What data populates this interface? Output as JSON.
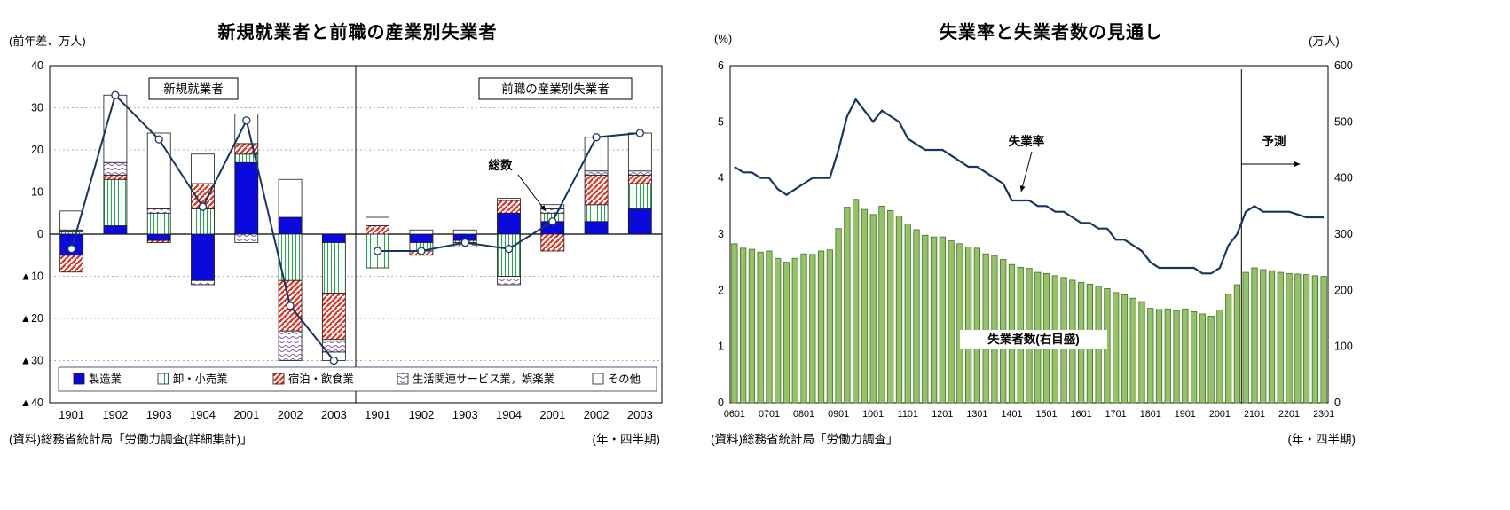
{
  "colors": {
    "navy_line": "#17375E",
    "manufacturing_blue": "#0A0ADC",
    "retail_green": "#2FA05A",
    "hotel_red": "#E0301E",
    "service_purple": "#7B5EA7",
    "other_white": "#FFFFFF",
    "green_bar_fill": "#94C266",
    "green_bar_stroke": "#46702A",
    "segment_outline": "#1A1A1A"
  },
  "chart_data": [
    {
      "type": "bar",
      "subtype": "stacked-bars-with-total-line-two-panels",
      "title": "新規就業者と前職の産業別失業者",
      "y_axis_unit": "(前年差、万人)",
      "x_axis_unit": "(年・四半期)",
      "source": "(資料)総務省統計局「労働力調査(詳細集計)」",
      "ylim": [
        -40,
        40
      ],
      "y_ticks": [
        {
          "value": 40,
          "label": "40"
        },
        {
          "value": 30,
          "label": "30"
        },
        {
          "value": 20,
          "label": "20"
        },
        {
          "value": 10,
          "label": "10"
        },
        {
          "value": 0,
          "label": "0"
        },
        {
          "value": -10,
          "label": "▲10"
        },
        {
          "value": -20,
          "label": "▲20"
        },
        {
          "value": -30,
          "label": "▲30"
        },
        {
          "value": -40,
          "label": "▲40"
        }
      ],
      "categories": [
        "1901",
        "1902",
        "1903",
        "1904",
        "2001",
        "2002",
        "2003"
      ],
      "series_names": [
        "製造業",
        "卸・小売業",
        "宿泊・飲食業",
        "生活関連サービス業，娯楽業",
        "その他"
      ],
      "series_fills": [
        "solid_blue",
        "vertical_green",
        "diagonal_red",
        "wave_purple",
        "plain_white"
      ],
      "total_line_label": "総数",
      "panels": [
        {
          "label": "新規就業者",
          "series": [
            {
              "name": "製造業",
              "values": [
                -5,
                2,
                -1.5,
                -11,
                17,
                4,
                -2
              ]
            },
            {
              "name": "卸・小売業",
              "values": [
                0.5,
                11,
                5,
                6,
                2,
                -11,
                -12
              ]
            },
            {
              "name": "宿泊・飲食業",
              "values": [
                -4,
                1,
                -0.5,
                6,
                2.5,
                -12,
                -11
              ]
            },
            {
              "name": "生活関連サービス業，娯楽業",
              "values": [
                0.5,
                3,
                1,
                -1,
                -2,
                -7,
                -3
              ]
            },
            {
              "name": "その他",
              "values": [
                4.5,
                16,
                18,
                7,
                7,
                9,
                -2
              ]
            }
          ],
          "total_line": [
            -3.5,
            33,
            22.5,
            6.5,
            27,
            -17,
            -30
          ]
        },
        {
          "label": "前職の産業別失業者",
          "series": [
            {
              "name": "製造業",
              "values": [
                0,
                -2,
                -1.5,
                5,
                3,
                3,
                6
              ]
            },
            {
              "name": "卸・小売業",
              "values": [
                -8,
                -2,
                -0.5,
                -10,
                2,
                4,
                6
              ]
            },
            {
              "name": "宿泊・飲食業",
              "values": [
                2,
                -1,
                0,
                3,
                -4,
                7,
                2
              ]
            },
            {
              "name": "生活関連サービス業，娯楽業",
              "values": [
                0,
                0,
                -1,
                -2,
                1,
                1,
                1
              ]
            },
            {
              "name": "その他",
              "values": [
                2,
                1,
                1,
                0.5,
                1,
                8,
                9
              ]
            }
          ],
          "total_line": [
            -4,
            -4,
            -2,
            -3.5,
            3,
            23,
            24
          ]
        }
      ]
    },
    {
      "type": "bar",
      "subtype": "bars-with-line-dual-axis",
      "title": "失業率と失業者数の見通し",
      "y_left_unit": "(%)",
      "y_right_unit": "(万人)",
      "x_axis_unit": "(年・四半期)",
      "source": "(資料)総務省統計局「労働力調査」",
      "annotations": {
        "rate_label": "失業率",
        "forecast_label": "予測",
        "count_label": "失業者数(右目盛)"
      },
      "y_left": {
        "min": 0,
        "max": 6,
        "ticks": [
          "0",
          "1",
          "2",
          "3",
          "4",
          "5",
          "6"
        ]
      },
      "y_right": {
        "min": 0,
        "max": 600,
        "ticks": [
          "0",
          "100",
          "200",
          "300",
          "400",
          "500",
          "600"
        ]
      },
      "x_tick_labels": [
        "0601",
        "0701",
        "0801",
        "0901",
        "1001",
        "1101",
        "1201",
        "1301",
        "1401",
        "1501",
        "1601",
        "1701",
        "1801",
        "1901",
        "2001",
        "2101",
        "2201",
        "2301"
      ],
      "x_tick_every": 4,
      "forecast_start_index": 59,
      "series": [
        {
          "name": "失業者数(右目盛)",
          "axis": "right",
          "kind": "bar",
          "values": [
            283,
            275,
            273,
            268,
            270,
            257,
            250,
            257,
            265,
            264,
            270,
            272,
            310,
            348,
            362,
            344,
            335,
            350,
            342,
            332,
            318,
            308,
            298,
            295,
            295,
            288,
            283,
            277,
            275,
            265,
            262,
            255,
            246,
            241,
            239,
            232,
            230,
            226,
            223,
            218,
            214,
            211,
            207,
            203,
            196,
            192,
            186,
            180,
            168,
            166,
            167,
            164,
            167,
            162,
            158,
            154,
            165,
            193,
            210,
            232,
            240,
            237,
            235,
            232,
            230,
            229,
            228,
            226,
            225
          ]
        },
        {
          "name": "失業率",
          "axis": "left",
          "kind": "line",
          "values": [
            4.2,
            4.1,
            4.1,
            4.0,
            4.0,
            3.8,
            3.7,
            3.8,
            3.9,
            4.0,
            4.0,
            4.0,
            4.5,
            5.1,
            5.4,
            5.2,
            5.0,
            5.2,
            5.1,
            5.0,
            4.7,
            4.6,
            4.5,
            4.5,
            4.5,
            4.4,
            4.3,
            4.2,
            4.2,
            4.1,
            4.0,
            3.9,
            3.6,
            3.6,
            3.6,
            3.5,
            3.5,
            3.4,
            3.4,
            3.3,
            3.2,
            3.2,
            3.1,
            3.1,
            2.9,
            2.9,
            2.8,
            2.7,
            2.5,
            2.4,
            2.4,
            2.4,
            2.4,
            2.4,
            2.3,
            2.3,
            2.4,
            2.8,
            3.0,
            3.4,
            3.5,
            3.4,
            3.4,
            3.4,
            3.4,
            3.35,
            3.3,
            3.3,
            3.3
          ]
        }
      ]
    }
  ]
}
